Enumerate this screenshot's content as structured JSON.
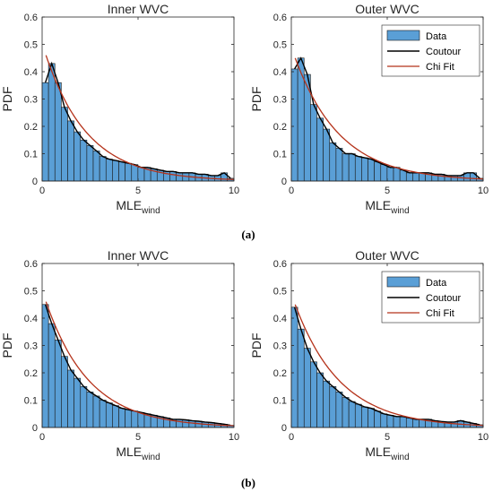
{
  "captions": [
    "(a)",
    "(b)"
  ],
  "legend": {
    "data": "Data",
    "contour": "Coutour",
    "fit": "Chi Fit"
  },
  "colors": {
    "bar_fill": "#5a9fd6",
    "bar_edge": "#1a1a1a",
    "contour": "#000000",
    "fit": "#b5331b"
  },
  "chart_data": [
    {
      "type": "bar",
      "title": "Inner WVC",
      "xlabel": "MLE",
      "xlabel_sub": "wind",
      "ylabel": "PDF",
      "xlim": [
        0,
        10
      ],
      "ylim": [
        0,
        0.6
      ],
      "xticks": [
        "0",
        "5",
        "10"
      ],
      "yticks": [
        "0",
        "0.1",
        "0.2",
        "0.3",
        "0.4",
        "0.5",
        "0.6"
      ],
      "bin_width": 0.333,
      "values": [
        0.36,
        0.43,
        0.36,
        0.27,
        0.22,
        0.18,
        0.15,
        0.13,
        0.11,
        0.09,
        0.08,
        0.075,
        0.07,
        0.065,
        0.06,
        0.05,
        0.05,
        0.045,
        0.04,
        0.035,
        0.035,
        0.03,
        0.03,
        0.03,
        0.025,
        0.025,
        0.02,
        0.02,
        0.03,
        0.01
      ],
      "fit_scale": 0.46,
      "fit_rate": 0.45,
      "legend": false
    },
    {
      "type": "bar",
      "title": "Outer WVC",
      "xlabel": "MLE",
      "xlabel_sub": "wind",
      "ylabel": "PDF",
      "xlim": [
        0,
        10
      ],
      "ylim": [
        0,
        0.6
      ],
      "xticks": [
        "0",
        "5",
        "10"
      ],
      "yticks": [
        "0",
        "0.1",
        "0.2",
        "0.3",
        "0.4",
        "0.5",
        "0.6"
      ],
      "bin_width": 0.333,
      "values": [
        0.41,
        0.45,
        0.39,
        0.28,
        0.23,
        0.19,
        0.14,
        0.12,
        0.1,
        0.1,
        0.09,
        0.085,
        0.08,
        0.07,
        0.06,
        0.05,
        0.05,
        0.04,
        0.03,
        0.03,
        0.03,
        0.03,
        0.025,
        0.025,
        0.02,
        0.02,
        0.02,
        0.03,
        0.03,
        0.01
      ],
      "fit_scale": 0.45,
      "fit_rate": 0.42,
      "legend": true
    },
    {
      "type": "bar",
      "title": "Inner WVC",
      "xlabel": "MLE",
      "xlabel_sub": "wind",
      "ylabel": "PDF",
      "xlim": [
        0,
        10
      ],
      "ylim": [
        0,
        0.6
      ],
      "xticks": [
        "0",
        "5",
        "10"
      ],
      "yticks": [
        "0",
        "0.1",
        "0.2",
        "0.3",
        "0.4",
        "0.5",
        "0.6"
      ],
      "bin_width": 0.333,
      "values": [
        0.45,
        0.38,
        0.32,
        0.26,
        0.21,
        0.18,
        0.15,
        0.13,
        0.115,
        0.1,
        0.09,
        0.08,
        0.07,
        0.065,
        0.06,
        0.055,
        0.05,
        0.045,
        0.04,
        0.035,
        0.03,
        0.03,
        0.028,
        0.025,
        0.023,
        0.02,
        0.018,
        0.015,
        0.012,
        0.008
      ],
      "fit_scale": 0.46,
      "fit_rate": 0.44,
      "legend": false
    },
    {
      "type": "bar",
      "title": "Outer WVC",
      "xlabel": "MLE",
      "xlabel_sub": "wind",
      "ylabel": "PDF",
      "xlim": [
        0,
        10
      ],
      "ylim": [
        0,
        0.6
      ],
      "xticks": [
        "0",
        "5",
        "10"
      ],
      "yticks": [
        "0",
        "0.1",
        "0.2",
        "0.3",
        "0.4",
        "0.5",
        "0.6"
      ],
      "bin_width": 0.333,
      "values": [
        0.44,
        0.36,
        0.29,
        0.24,
        0.2,
        0.17,
        0.15,
        0.13,
        0.11,
        0.095,
        0.085,
        0.075,
        0.07,
        0.06,
        0.05,
        0.045,
        0.04,
        0.04,
        0.035,
        0.03,
        0.03,
        0.03,
        0.025,
        0.022,
        0.02,
        0.02,
        0.025,
        0.02,
        0.015,
        0.01
      ],
      "fit_scale": 0.45,
      "fit_rate": 0.42,
      "legend": true
    }
  ]
}
